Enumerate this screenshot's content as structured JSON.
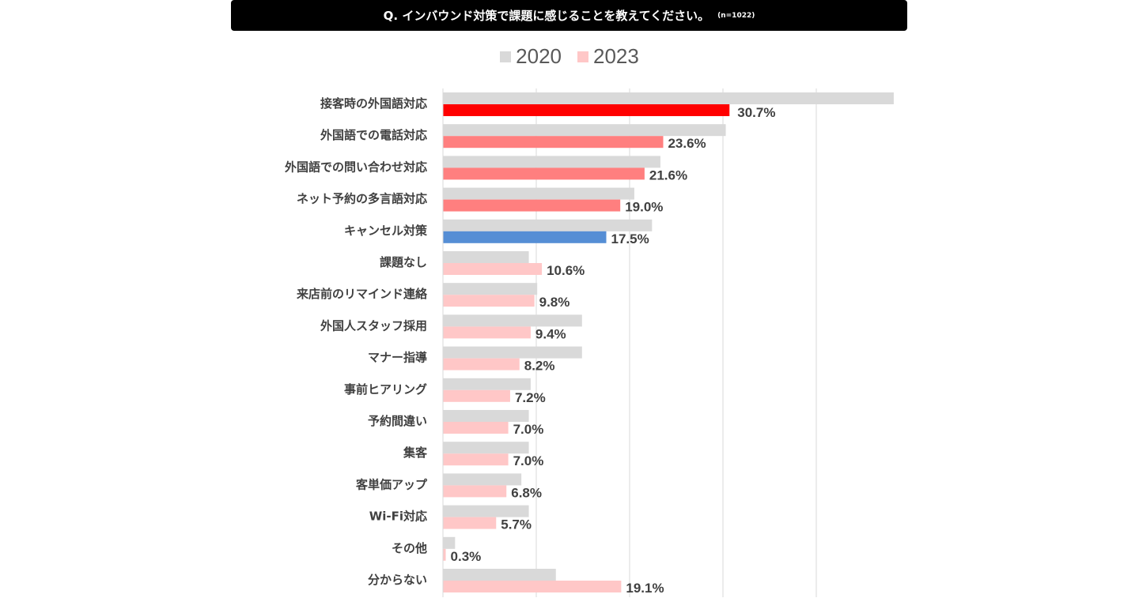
{
  "chart_data": {
    "type": "bar",
    "orientation": "horizontal",
    "title": "Q. インバウンド対策で課題に感じることを教えてください。",
    "subtitle": "(n=1022)",
    "xlabel": "",
    "ylabel": "",
    "xlim": [
      0,
      50
    ],
    "grid": true,
    "legend_position": "top-center",
    "categories": [
      "接客時の外国語対応",
      "外国語での電話対応",
      "外国語での問い合わせ対応",
      "ネット予約の多言語対応",
      "キャンセル対策",
      "課題なし",
      "来店前のリマインド連絡",
      "外国人スタッフ採用",
      "マナー指導",
      "事前ヒアリング",
      "予約間違い",
      "集客",
      "客単価アップ",
      "Wi-Fi対応",
      "その他",
      "分からない"
    ],
    "series": [
      {
        "name": "2020",
        "color": "#d9d9d9",
        "values": [
          48.3,
          30.3,
          23.3,
          20.5,
          22.4,
          9.2,
          10.1,
          14.9,
          14.9,
          9.4,
          9.2,
          9.2,
          8.4,
          9.2,
          1.3,
          12.1
        ]
      },
      {
        "name": "2023",
        "color": "#ffc7c7",
        "values": [
          30.7,
          23.6,
          21.6,
          19.0,
          17.5,
          10.6,
          9.8,
          9.4,
          8.2,
          7.2,
          7.0,
          7.0,
          6.8,
          5.7,
          0.3,
          19.1
        ],
        "labels": [
          "30.7%",
          "23.6%",
          "21.6%",
          "19.0%",
          "17.5%",
          "10.6%",
          "9.8%",
          "9.4%",
          "8.2%",
          "7.2%",
          "7.0%",
          "7.0%",
          "6.8%",
          "5.7%",
          "0.3%",
          "19.1%"
        ],
        "bar_colors": [
          "#ff0000",
          "#ff7f7f",
          "#ff7f7f",
          "#ff7f7f",
          "#558ed5",
          "#ffc7c7",
          "#ffc7c7",
          "#ffc7c7",
          "#ffc7c7",
          "#ffc7c7",
          "#ffc7c7",
          "#ffc7c7",
          "#ffc7c7",
          "#ffc7c7",
          "#ffc7c7",
          "#ffc7c7"
        ]
      }
    ]
  }
}
